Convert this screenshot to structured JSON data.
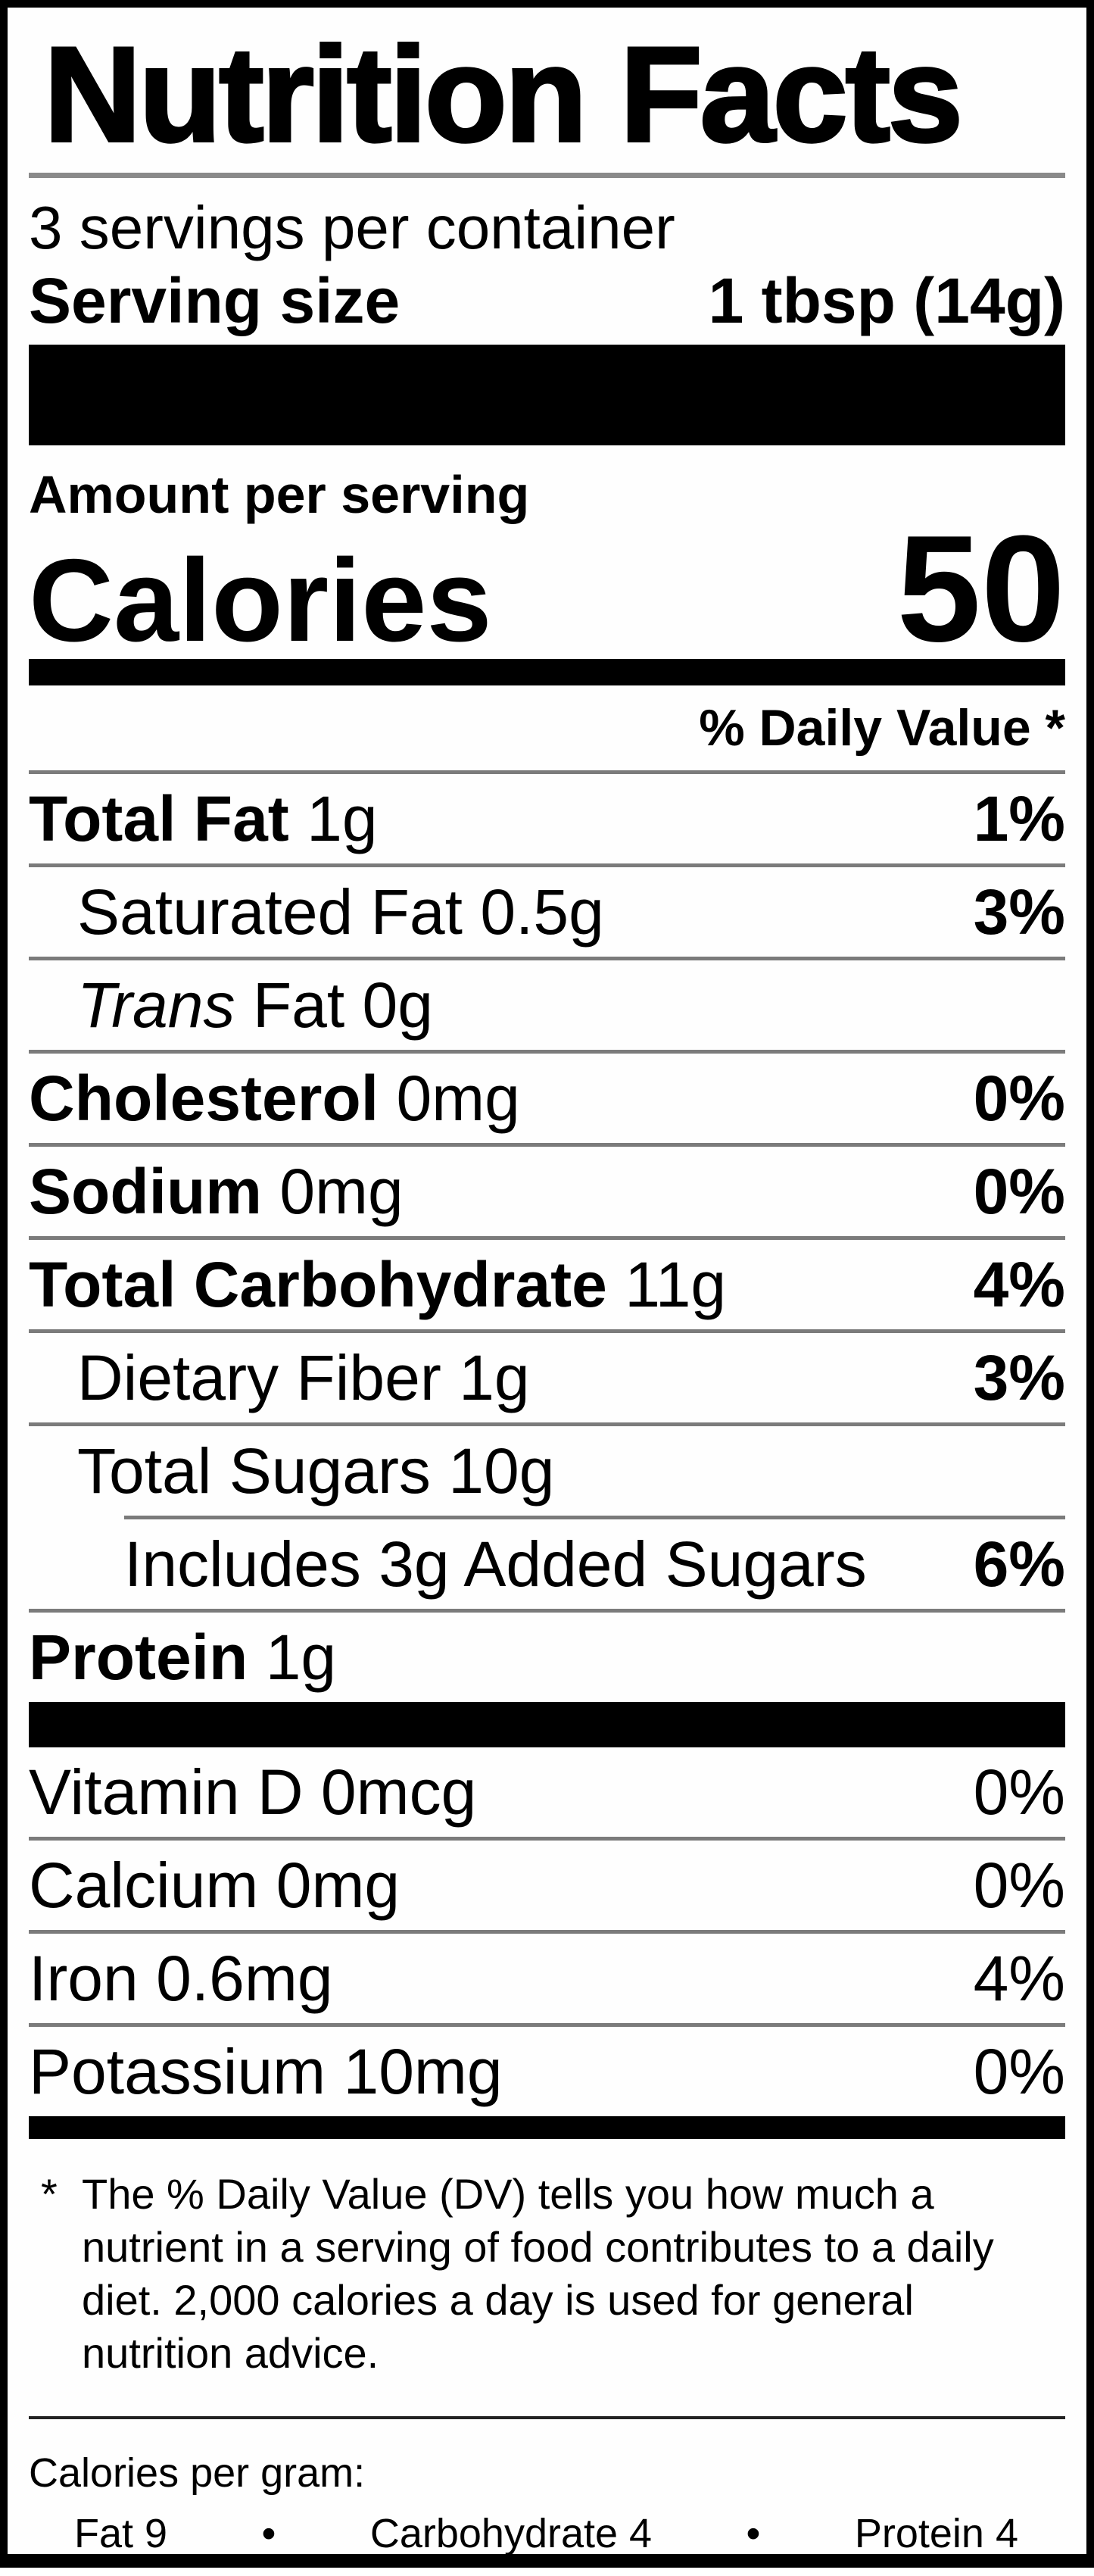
{
  "label": {
    "title": "Nutrition Facts",
    "servings_per_container": "3 servings per container",
    "serving_size_label": "Serving size",
    "serving_size_value": "1 tbsp (14g)",
    "amount_per_serving": "Amount per serving",
    "calories_label": "Calories",
    "calories_value": "50",
    "daily_value_header": "% Daily Value *",
    "nutrients": [
      {
        "name": "Total Fat",
        "amount": "1g",
        "percent": "1%",
        "indent": 0,
        "name_style": "b"
      },
      {
        "name": "Saturated Fat",
        "amount": "0.5g",
        "percent": "3%",
        "indent": 1,
        "name_style": ""
      },
      {
        "name": "Trans",
        "amount": "Fat 0g",
        "percent": "",
        "indent": 1,
        "name_style": "i"
      },
      {
        "name": "Cholesterol",
        "amount": "0mg",
        "percent": "0%",
        "indent": 0,
        "name_style": "b"
      },
      {
        "name": "Sodium",
        "amount": "0mg",
        "percent": "0%",
        "indent": 0,
        "name_style": "b"
      },
      {
        "name": "Total Carbohydrate",
        "amount": "11g",
        "percent": "4%",
        "indent": 0,
        "name_style": "b"
      },
      {
        "name": "Dietary Fiber",
        "amount": "1g",
        "percent": "3%",
        "indent": 1,
        "name_style": ""
      },
      {
        "name": "Total Sugars",
        "amount": "10g",
        "percent": "",
        "indent": 1,
        "name_style": ""
      },
      {
        "name": "Includes 3g Added Sugars",
        "amount": "",
        "percent": "6%",
        "indent": 2,
        "name_style": "",
        "divider_indent": true
      },
      {
        "name": "Protein",
        "amount": "1g",
        "percent": "",
        "indent": 0,
        "name_style": "b"
      }
    ],
    "vitamins": [
      {
        "name": "Vitamin D 0mcg",
        "percent": "0%"
      },
      {
        "name": "Calcium 0mg",
        "percent": "0%"
      },
      {
        "name": "Iron 0.6mg",
        "percent": "4%"
      },
      {
        "name": "Potassium 10mg",
        "percent": "0%"
      }
    ],
    "footnote": {
      "marker": "*",
      "text": "The % Daily Value (DV) tells you how much a nutrient in a serving of food contributes to a daily diet. 2,000 calories a day is used for general nutrition advice."
    },
    "calories_per_gram": {
      "heading": "Calories per gram:",
      "bullet": "•",
      "items": [
        "Fat 9",
        "Carbohydrate 4",
        "Protein 4"
      ]
    },
    "colors": {
      "text": "#000000",
      "background": "#ffffff",
      "border": "#000000",
      "rule_gray": "#7b7b7b"
    }
  }
}
